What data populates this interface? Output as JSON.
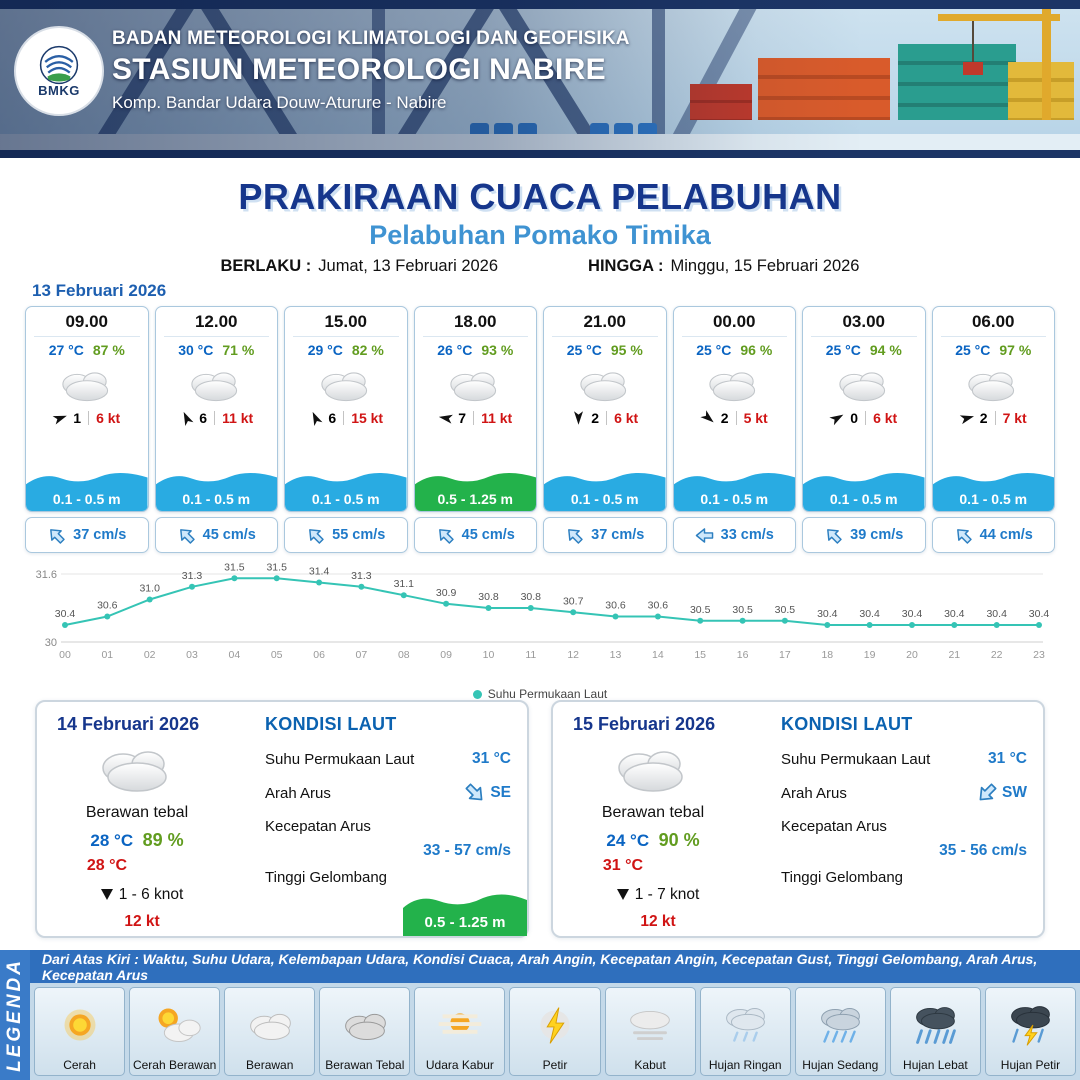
{
  "header": {
    "logo_text": "BMKG",
    "agency": "BADAN METEOROLOGI KLIMATOLOGI DAN GEOFISIKA",
    "station": "STASIUN METEOROLOGI NABIRE",
    "address": "Komp. Bandar Udara Douw-Aturure - Nabire"
  },
  "title": {
    "main": "PRAKIRAAN CUACA PELABUHAN",
    "subtitle": "Pelabuhan Pomako Timika",
    "valid_from_label": "BERLAKU :",
    "valid_from": "Jumat, 13 Februari 2026",
    "valid_to_label": "HINGGA :",
    "valid_to": "Minggu, 15 Februari 2026"
  },
  "forecast_date": "13 Februari 2026",
  "forecast_cards": [
    {
      "time": "09.00",
      "temp": "27 °C",
      "humidity": "87 %",
      "weather_icon": "berawan",
      "wind_rot": -20,
      "wind_val": "1",
      "wind_speed": "6 kt",
      "wave": "0.1 - 0.5 m",
      "wave_type": "blue",
      "current_rot": 315,
      "current": "37 cm/s"
    },
    {
      "time": "12.00",
      "temp": "30 °C",
      "humidity": "71 %",
      "weather_icon": "berawan",
      "wind_rot": -115,
      "wind_val": "6",
      "wind_speed": "11 kt",
      "wave": "0.1 - 0.5 m",
      "wave_type": "blue",
      "current_rot": 315,
      "current": "45 cm/s"
    },
    {
      "time": "15.00",
      "temp": "29 °C",
      "humidity": "82 %",
      "weather_icon": "berawan",
      "wind_rot": -115,
      "wind_val": "6",
      "wind_speed": "15 kt",
      "wave": "0.1 - 0.5 m",
      "wave_type": "blue",
      "current_rot": 315,
      "current": "55 cm/s"
    },
    {
      "time": "18.00",
      "temp": "26 °C",
      "humidity": "93 %",
      "weather_icon": "berawan",
      "wind_rot": 190,
      "wind_val": "7",
      "wind_speed": "11 kt",
      "wave": "0.5 - 1.25 m",
      "wave_type": "green",
      "current_rot": 315,
      "current": "45 cm/s"
    },
    {
      "time": "21.00",
      "temp": "25 °C",
      "humidity": "95 %",
      "weather_icon": "berawan",
      "wind_rot": 90,
      "wind_val": "2",
      "wind_speed": "6 kt",
      "wave": "0.1 - 0.5 m",
      "wave_type": "blue",
      "current_rot": 315,
      "current": "37 cm/s"
    },
    {
      "time": "00.00",
      "temp": "25 °C",
      "humidity": "96 %",
      "weather_icon": "berawan",
      "wind_rot": 40,
      "wind_val": "2",
      "wind_speed": "5 kt",
      "wave": "0.1 - 0.5 m",
      "wave_type": "blue",
      "current_rot": 270,
      "current": "33 cm/s"
    },
    {
      "time": "03.00",
      "temp": "25 °C",
      "humidity": "94 %",
      "weather_icon": "berawan",
      "wind_rot": -30,
      "wind_val": "0",
      "wind_speed": "6 kt",
      "wave": "0.1 - 0.5 m",
      "wave_type": "blue",
      "current_rot": 315,
      "current": "39 cm/s"
    },
    {
      "time": "06.00",
      "temp": "25 °C",
      "humidity": "97 %",
      "weather_icon": "berawan",
      "wind_rot": -15,
      "wind_val": "2",
      "wind_speed": "7 kt",
      "wave": "0.1 - 0.5 m",
      "wave_type": "blue",
      "current_rot": 315,
      "current": "44 cm/s"
    }
  ],
  "chart_data": {
    "type": "line",
    "title": "",
    "legend": "Suhu Permukaan Laut",
    "x": [
      "00",
      "01",
      "02",
      "03",
      "04",
      "05",
      "06",
      "07",
      "08",
      "09",
      "10",
      "11",
      "12",
      "13",
      "14",
      "15",
      "16",
      "17",
      "18",
      "19",
      "20",
      "21",
      "22",
      "23"
    ],
    "values": [
      30.4,
      30.6,
      31.0,
      31.3,
      31.5,
      31.5,
      31.4,
      31.3,
      31.1,
      30.9,
      30.8,
      30.8,
      30.7,
      30.6,
      30.6,
      30.5,
      30.5,
      30.5,
      30.4,
      30.4,
      30.4,
      30.4,
      30.4,
      30.4
    ],
    "ylim": [
      30,
      31.6
    ],
    "yticks": [
      "30",
      "31.6"
    ],
    "line_color": "#35c4b5",
    "grid": true,
    "legend_position": "bottom"
  },
  "day_cards": [
    {
      "date": "14 Februari 2026",
      "weather": "Berawan tebal",
      "temp": "28 °C",
      "humidity": "89 %",
      "temp2": "28 °C",
      "wind": "1 - 6 knot",
      "gust": "12 kt",
      "sea_title": "KONDISI LAUT",
      "sst_label": "Suhu Permukaan Laut",
      "sst": "31 °C",
      "current_dir_label": "Arah Arus",
      "current_dir": "SE",
      "current_rot": 135,
      "current_speed_label": "Kecepatan Arus",
      "current_speed": "33 - 57 cm/s",
      "wave_label": "Tinggi Gelombang",
      "wave": "0.5 - 1.25 m"
    },
    {
      "date": "15 Februari 2026",
      "weather": "Berawan tebal",
      "temp": "24 °C",
      "humidity": "90 %",
      "temp2": "31 °C",
      "wind": "1 - 7 knot",
      "gust": "12 kt",
      "sea_title": "KONDISI LAUT",
      "sst_label": "Suhu Permukaan Laut",
      "sst": "31 °C",
      "current_dir_label": "Arah Arus",
      "current_dir": "SW",
      "current_rot": 225,
      "current_speed_label": "Kecepatan Arus",
      "current_speed": "35 - 56 cm/s",
      "wave_label": "Tinggi Gelombang",
      "wave": ""
    }
  ],
  "legend": {
    "sidebar": "LEGENDA",
    "description": "Dari Atas Kiri : Waktu, Suhu Udara, Kelembapan Udara, Kondisi Cuaca, Arah Angin, Kecepatan Angin, Kecepatan Gust, Tinggi Gelombang, Arah Arus, Kecepatan Arus",
    "items": [
      {
        "icon": "cerah",
        "label": "Cerah"
      },
      {
        "icon": "cerah-berawan",
        "label": "Cerah Berawan"
      },
      {
        "icon": "berawan",
        "label": "Berawan"
      },
      {
        "icon": "berawan-tebal",
        "label": "Berawan Tebal"
      },
      {
        "icon": "udara-kabur",
        "label": "Udara Kabur"
      },
      {
        "icon": "petir",
        "label": "Petir"
      },
      {
        "icon": "kabut",
        "label": "Kabut"
      },
      {
        "icon": "hujan-ringan",
        "label": "Hujan Ringan"
      },
      {
        "icon": "hujan-sedang",
        "label": "Hujan Sedang"
      },
      {
        "icon": "hujan-lebat",
        "label": "Hujan Lebat"
      },
      {
        "icon": "hujan-petir",
        "label": "Hujan Petir"
      }
    ]
  },
  "colors": {
    "wave_blue": "#29abe2",
    "wave_green": "#23b24b",
    "accent_navy": "#16368c",
    "accent_blue": "#3f93d2",
    "temp_blue": "#0a64c2",
    "humidity_green": "#619c1f",
    "speed_red": "#d01414",
    "current_blue": "#1f7ac9",
    "chart_teal": "#35c4b5",
    "legend_bar_blue": "#2f6fbd"
  }
}
